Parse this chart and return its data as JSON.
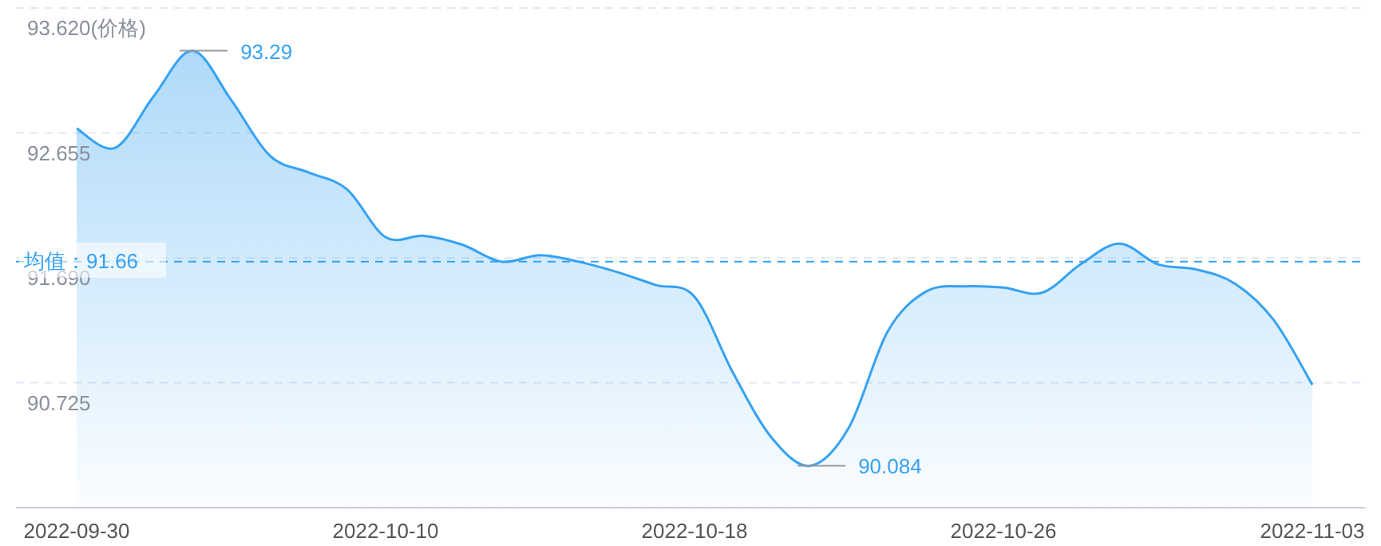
{
  "chart_data": {
    "type": "area",
    "categories": [
      "2022-09-30",
      null,
      null,
      null,
      null,
      null,
      null,
      null,
      "2022-10-10",
      null,
      null,
      null,
      null,
      null,
      null,
      null,
      "2022-10-18",
      null,
      null,
      null,
      null,
      null,
      null,
      null,
      "2022-10-26",
      null,
      null,
      null,
      null,
      null,
      null,
      null,
      "2022-11-03"
    ],
    "series": [
      {
        "color": "#35a2f2",
        "values": [
          92.69,
          92.54,
          92.94,
          93.29,
          92.91,
          92.48,
          92.35,
          92.22,
          91.85,
          91.86,
          91.79,
          91.66,
          91.71,
          91.66,
          91.58,
          91.48,
          91.39,
          90.8,
          90.3,
          90.084,
          90.38,
          91.12,
          91.43,
          91.47,
          91.46,
          91.42,
          91.64,
          91.8,
          91.64,
          91.6,
          91.49,
          91.21,
          90.71
        ],
        "value_labels": [
          null,
          null,
          null,
          "93.29",
          null,
          null,
          null,
          null,
          null,
          null,
          null,
          null,
          null,
          null,
          null,
          null,
          null,
          null,
          null,
          "90.084",
          null,
          null,
          null,
          null,
          null,
          null,
          null,
          null,
          null,
          null,
          null,
          null,
          null
        ]
      }
    ],
    "ylim": [
      89.76,
      93.62
    ],
    "yticks": [
      {
        "value": 93.62,
        "label": "93.620(价格)"
      },
      92.655,
      {
        "value": 91.69,
        "label": "91.690"
      },
      90.725
    ],
    "grid": "y",
    "ref_lines": [
      {
        "axis": "y",
        "value": 91.66,
        "label": "均值：91.66",
        "color": "#35a2f2",
        "line_style": "dashed"
      }
    ]
  }
}
